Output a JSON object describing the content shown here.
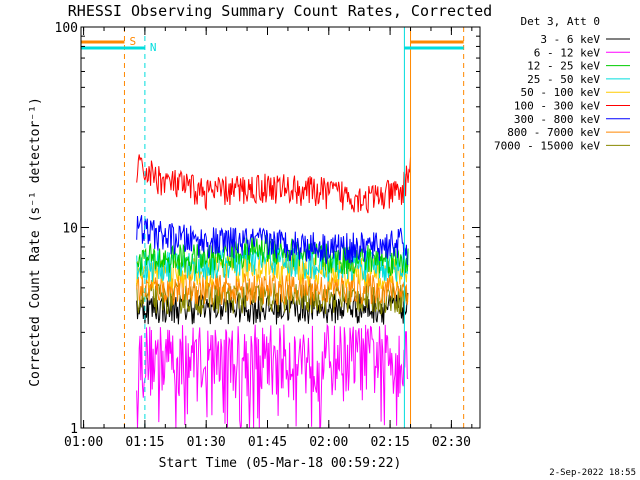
{
  "chart_data": {
    "type": "line",
    "title": "RHESSI Observing Summary Count Rates, Corrected",
    "ylabel": "Corrected Count Rate (s⁻¹ detector⁻¹)",
    "xlabel": "Start Time (05-Mar-18 00:59:22)",
    "footer": "2-Sep-2022 18:55",
    "y_scale": "log",
    "ylim": [
      1,
      100
    ],
    "xlim": [
      "00:59:22",
      "02:37:00"
    ],
    "x_ticks": [
      "01:00",
      "01:15",
      "01:30",
      "01:45",
      "02:00",
      "02:15",
      "02:30"
    ],
    "y_ticks": [
      {
        "value": 1,
        "label": "1"
      },
      {
        "value": 10,
        "label": "10"
      },
      {
        "value": 100,
        "label": "100"
      }
    ],
    "legend": {
      "header": "Det 3, Att 0",
      "placement": "right",
      "entries": [
        {
          "label": "3 - 6 keV",
          "color": "#000000"
        },
        {
          "label": "6 - 12 keV",
          "color": "#ff00ff"
        },
        {
          "label": "12 - 25 keV",
          "color": "#00cc00"
        },
        {
          "label": "25 - 50 keV",
          "color": "#00dddd"
        },
        {
          "label": "50 - 100 keV",
          "color": "#ffcc00"
        },
        {
          "label": "100 - 300 keV",
          "color": "#ff0000"
        },
        {
          "label": "300 - 800 keV",
          "color": "#0000ff"
        },
        {
          "label": "800 - 7000 keV",
          "color": "#ff8800"
        },
        {
          "label": "7000 - 15000 keV",
          "color": "#888800"
        }
      ]
    },
    "markers": [
      {
        "label": "S",
        "kind": "flag",
        "color": "#ff8800",
        "times": [
          "01:10:00",
          "02:20:00",
          "02:33:00"
        ]
      },
      {
        "label": "N",
        "kind": "flag",
        "color": "#00dddd",
        "times": [
          "01:15:00",
          "02:18:30"
        ]
      }
    ],
    "series": [
      {
        "name": "100 - 300 keV",
        "color": "#ff0000",
        "start": "01:13:00",
        "end": "02:20:00",
        "x": [
          "01:13",
          "01:20",
          "01:30",
          "01:45",
          "02:00",
          "02:10",
          "02:18",
          "02:20"
        ],
        "values": [
          20,
          17,
          15,
          16,
          15,
          14,
          15,
          21
        ]
      },
      {
        "name": "300 - 800 keV",
        "color": "#0000ff",
        "start": "01:13:00",
        "end": "02:19:30",
        "x": [
          "01:13",
          "01:20",
          "01:30",
          "01:45",
          "02:00",
          "02:10",
          "02:18",
          "02:19"
        ],
        "values": [
          10,
          9,
          8.5,
          8.5,
          8,
          8,
          8.5,
          7
        ]
      },
      {
        "name": "12 - 25 keV",
        "color": "#00cc00",
        "start": "01:13:00",
        "end": "02:19:30",
        "x": [
          "01:13",
          "01:30",
          "01:45",
          "02:00",
          "02:19"
        ],
        "values": [
          7,
          7,
          8,
          7,
          7
        ]
      },
      {
        "name": "25 - 50 keV",
        "color": "#00dddd",
        "start": "01:13:00",
        "end": "02:19:30",
        "x": [
          "01:13",
          "01:30",
          "01:45",
          "02:00",
          "02:19"
        ],
        "values": [
          6.5,
          6.5,
          7,
          6.5,
          6.5
        ]
      },
      {
        "name": "50 - 100 keV",
        "color": "#ffcc00",
        "start": "01:13:00",
        "end": "02:19:30",
        "x": [
          "01:13",
          "01:30",
          "01:45",
          "02:00",
          "02:19"
        ],
        "values": [
          6,
          6,
          6.5,
          6,
          6
        ]
      },
      {
        "name": "800 - 7000 keV",
        "color": "#ff8800",
        "start": "01:13:00",
        "end": "02:19:30",
        "x": [
          "01:13",
          "01:30",
          "01:45",
          "02:00",
          "02:19"
        ],
        "values": [
          5,
          5,
          5,
          5,
          5
        ]
      },
      {
        "name": "3 - 6 keV",
        "color": "#000000",
        "start": "01:13:00",
        "end": "02:19:30",
        "x": [
          "01:13",
          "01:30",
          "01:45",
          "02:00",
          "02:19"
        ],
        "values": [
          4,
          4,
          4,
          4,
          4
        ]
      },
      {
        "name": "6 - 12 keV",
        "color": "#ff00ff",
        "start": "01:13:00",
        "end": "02:19:30",
        "x": [
          "01:13",
          "01:30",
          "01:45",
          "02:00",
          "02:19"
        ],
        "values": [
          3,
          3,
          3,
          3,
          3
        ]
      },
      {
        "name": "7000 - 15000 keV",
        "color": "#888800",
        "start": "01:13:00",
        "end": "02:19:30",
        "x": [
          "01:13",
          "01:30",
          "01:45",
          "02:00",
          "02:19"
        ],
        "values": [
          4.5,
          4.5,
          4.5,
          4.5,
          4.5
        ]
      }
    ]
  }
}
